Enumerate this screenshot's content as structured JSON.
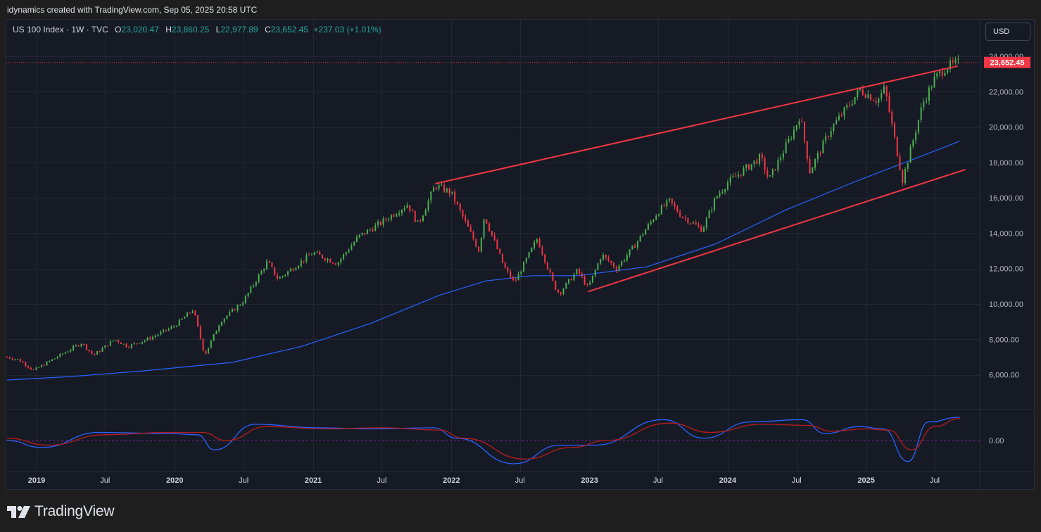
{
  "header": {
    "caption": "idynamics created with TradingView.com, Sep 05, 2025 20:58 UTC"
  },
  "legend": {
    "symbol": "US 100 Index · 1W · TVC",
    "o_label": "O",
    "o_value": "23,020.47",
    "h_label": "H",
    "h_value": "23,860.25",
    "l_label": "L",
    "l_value": "22,977.89",
    "c_label": "C",
    "c_value": "23,652.45",
    "change": "+237.03 (+1.01%)"
  },
  "currency_button": "USD",
  "footer": {
    "brand": "TradingView"
  },
  "colors": {
    "up": "#26a69a",
    "down": "#ef5350",
    "candle_up": "#4caf50",
    "candle_down": "#f23645",
    "trendline": "#f23645",
    "ma": "#2962ff",
    "osc_fast": "#2962ff",
    "osc_slow": "#b71c1c",
    "last_price_bg": "#f23645"
  },
  "chart_data": {
    "type": "line",
    "title": "US 100 Index · 1W · TVC",
    "ylim": [
      4000,
      25000
    ],
    "y_ticks": [
      "24,000.00",
      "22,000.00",
      "20,000.00",
      "18,000.00",
      "16,000.00",
      "14,000.00",
      "12,000.00",
      "10,000.00",
      "8,000.00",
      "6,000.00"
    ],
    "y_tick_values": [
      24000,
      22000,
      20000,
      18000,
      16000,
      14000,
      12000,
      10000,
      8000,
      6000
    ],
    "x_ticks": [
      "2019",
      "Jul",
      "2020",
      "Jul",
      "2021",
      "Jul",
      "2022",
      "Jul",
      "2023",
      "Jul",
      "2024",
      "Jul",
      "2025",
      "Jul"
    ],
    "x_tick_dates": [
      "2019-01-01",
      "2019-07-01",
      "2020-01-01",
      "2020-07-01",
      "2021-01-01",
      "2021-07-01",
      "2022-01-01",
      "2022-07-01",
      "2023-01-01",
      "2023-07-01",
      "2024-01-01",
      "2024-07-01",
      "2025-01-01",
      "2025-07-01"
    ],
    "last_price_label": "23,652.45",
    "last_price": 23652.45,
    "series": [
      {
        "name": "",
        "kind": "weekly close (approx.)",
        "x": [
          "2018-10-15",
          "2018-11-15",
          "2018-12-24",
          "2019-02-15",
          "2019-04-30",
          "2019-05-31",
          "2019-07-26",
          "2019-08-30",
          "2019-10-31",
          "2019-12-31",
          "2020-02-19",
          "2020-03-20",
          "2020-04-30",
          "2020-06-30",
          "2020-09-02",
          "2020-09-30",
          "2020-12-31",
          "2021-03-05",
          "2021-04-30",
          "2021-06-30",
          "2021-09-07",
          "2021-10-05",
          "2021-11-19",
          "2021-12-31",
          "2022-03-15",
          "2022-03-29",
          "2022-05-20",
          "2022-06-16",
          "2022-08-16",
          "2022-09-30",
          "2022-10-13",
          "2022-11-30",
          "2022-12-28",
          "2023-02-02",
          "2023-03-13",
          "2023-04-28",
          "2023-06-30",
          "2023-07-31",
          "2023-08-31",
          "2023-10-26",
          "2023-11-30",
          "2023-12-31",
          "2024-03-28",
          "2024-04-19",
          "2024-06-28",
          "2024-07-10",
          "2024-08-05",
          "2024-09-30",
          "2024-12-16",
          "2025-01-31",
          "2025-02-19",
          "2025-04-07",
          "2025-05-30",
          "2025-06-30",
          "2025-07-31",
          "2025-09-05"
        ],
        "y": [
          7000,
          6850,
          6250,
          6900,
          7800,
          7100,
          8000,
          7600,
          8100,
          8750,
          9700,
          7100,
          9000,
          10150,
          12400,
          11400,
          12900,
          12300,
          13800,
          14600,
          15650,
          14500,
          16700,
          16300,
          13000,
          15000,
          12100,
          11200,
          13700,
          11000,
          10600,
          11900,
          10900,
          12800,
          12000,
          13250,
          15200,
          15800,
          15000,
          14200,
          16000,
          16850,
          18300,
          17000,
          20000,
          20700,
          17500,
          19900,
          22100,
          21500,
          22200,
          17000,
          21300,
          22700,
          23400,
          23652
        ]
      },
      {
        "name": "",
        "kind": "moving average (approx.)",
        "x": [
          "2018-10-15",
          "2019-04-01",
          "2019-10-01",
          "2020-06-01",
          "2020-12-01",
          "2021-06-01",
          "2021-12-01",
          "2022-04-01",
          "2022-08-01",
          "2022-12-01",
          "2023-06-01",
          "2023-12-01",
          "2024-06-01",
          "2024-12-01",
          "2025-04-01",
          "2025-09-05"
        ],
        "y": [
          5700,
          5900,
          6200,
          6700,
          7600,
          8900,
          10500,
          11300,
          11600,
          11600,
          12100,
          13400,
          15300,
          16900,
          17900,
          19200
        ]
      }
    ],
    "trendlines": [
      {
        "x": [
          "2021-11-19",
          "2025-08-31"
        ],
        "y": [
          16800,
          23450
        ]
      },
      {
        "x": [
          "2022-12-28",
          "2025-09-20"
        ],
        "y": [
          10700,
          17600
        ]
      }
    ],
    "oscillator": {
      "zero_label": "0.00",
      "series": [
        {
          "name": "",
          "x": [
            "2018-10-15",
            "2019-01-15",
            "2019-06-15",
            "2019-12-15",
            "2020-03-01",
            "2020-04-15",
            "2020-08-01",
            "2021-01-15",
            "2021-06-01",
            "2021-11-15",
            "2022-01-15",
            "2022-06-15",
            "2022-10-15",
            "2023-01-15",
            "2023-07-15",
            "2023-10-30",
            "2024-03-01",
            "2024-07-15",
            "2024-09-15",
            "2024-12-15",
            "2025-02-15",
            "2025-04-21",
            "2025-06-15",
            "2025-09-05"
          ],
          "y": [
            0.0,
            -0.3,
            0.35,
            0.3,
            0.25,
            -0.4,
            0.7,
            0.55,
            0.5,
            0.55,
            0.1,
            -1.0,
            -0.2,
            -0.2,
            0.9,
            0.1,
            0.8,
            0.9,
            0.3,
            0.6,
            0.5,
            -0.9,
            0.8,
            1.0
          ]
        },
        {
          "name": "",
          "x": [
            "2018-10-15",
            "2019-02-01",
            "2019-07-01",
            "2019-12-15",
            "2020-03-15",
            "2020-05-15",
            "2020-09-01",
            "2021-02-01",
            "2021-07-01",
            "2021-12-01",
            "2022-02-01",
            "2022-07-15",
            "2022-11-15",
            "2023-02-15",
            "2023-08-01",
            "2023-11-15",
            "2024-04-01",
            "2024-08-01",
            "2024-10-01",
            "2025-01-01",
            "2025-03-01",
            "2025-05-01",
            "2025-07-01",
            "2025-09-05"
          ],
          "y": [
            0.1,
            -0.2,
            0.25,
            0.35,
            0.35,
            0.0,
            0.6,
            0.5,
            0.55,
            0.45,
            0.1,
            -0.8,
            -0.3,
            0.0,
            0.75,
            0.35,
            0.7,
            0.65,
            0.4,
            0.5,
            0.45,
            -0.4,
            0.6,
            0.95
          ]
        }
      ]
    }
  }
}
